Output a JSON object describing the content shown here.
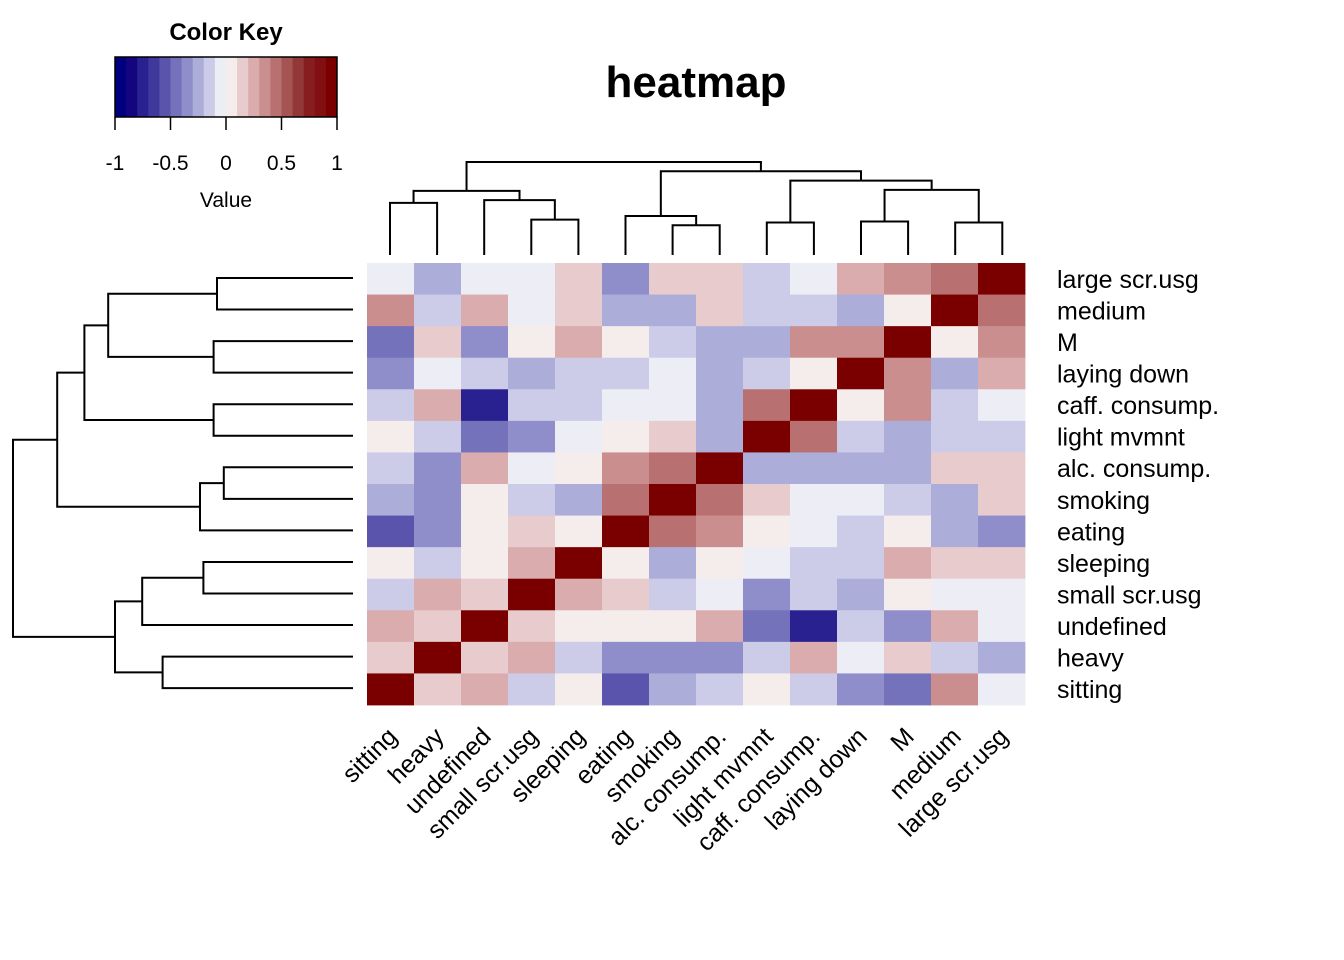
{
  "chart_data": {
    "type": "heatmap",
    "title": "heatmap",
    "color_key": {
      "title": "Color Key",
      "xlabel": "Value",
      "range": [
        -1,
        1
      ],
      "ticks": [
        "-1",
        "-0.5",
        "0",
        "0.5",
        "1"
      ],
      "tick_values": [
        -1,
        -0.5,
        0,
        0.5,
        1
      ],
      "bins": 20,
      "palette": [
        "#00007F",
        "#14047F",
        "#29218F",
        "#3F399C",
        "#5A54AC",
        "#7472BA",
        "#908ECA",
        "#ADADDA",
        "#CCCCE8",
        "#EDEDF5",
        "#F5ECEC",
        "#E8CBCD",
        "#DAACAD",
        "#CA8E8F",
        "#B87070",
        "#A55353",
        "#923838",
        "#871D1F",
        "#820F12",
        "#7A0000"
      ]
    },
    "columns": [
      "sitting",
      "heavy",
      "undefined",
      "small scr.usg",
      "sleeping",
      "eating",
      "smoking",
      "alc. consump.",
      "light mvmnt",
      "caff. consump.",
      "laying down",
      "M",
      "medium",
      "large scr.usg"
    ],
    "rows": [
      "large scr.usg",
      "medium",
      "M",
      "laying down",
      "caff. consump.",
      "light mvmnt",
      "alc. consump.",
      "smoking",
      "eating",
      "sleeping",
      "small scr.usg",
      "undefined",
      "heavy",
      "sitting"
    ],
    "values": [
      [
        -0.05,
        -0.25,
        -0.05,
        -0.05,
        0.15,
        -0.35,
        0.15,
        0.15,
        -0.15,
        -0.05,
        0.25,
        0.35,
        0.45,
        1
      ],
      [
        0.35,
        -0.15,
        0.25,
        -0.05,
        0.15,
        -0.25,
        -0.25,
        0.15,
        -0.15,
        -0.15,
        -0.25,
        0.05,
        1,
        0.45
      ],
      [
        -0.45,
        0.15,
        -0.35,
        0.05,
        0.25,
        0.05,
        -0.15,
        -0.25,
        -0.25,
        0.35,
        0.35,
        1,
        0.05,
        0.35
      ],
      [
        -0.35,
        -0.05,
        -0.15,
        -0.25,
        -0.15,
        -0.15,
        -0.05,
        -0.25,
        -0.15,
        0.05,
        1,
        0.35,
        -0.25,
        0.25
      ],
      [
        -0.15,
        0.25,
        -0.75,
        -0.15,
        -0.15,
        -0.05,
        -0.05,
        -0.25,
        0.45,
        1,
        0.05,
        0.35,
        -0.15,
        -0.05
      ],
      [
        0.05,
        -0.15,
        -0.45,
        -0.35,
        -0.05,
        0.05,
        0.15,
        -0.25,
        1,
        0.45,
        -0.15,
        -0.25,
        -0.15,
        -0.15
      ],
      [
        -0.15,
        -0.35,
        0.25,
        -0.05,
        0.05,
        0.35,
        0.45,
        1,
        -0.25,
        -0.25,
        -0.25,
        -0.25,
        0.15,
        0.15
      ],
      [
        -0.25,
        -0.35,
        0.05,
        -0.15,
        -0.25,
        0.45,
        1,
        0.45,
        0.15,
        -0.05,
        -0.05,
        -0.15,
        -0.25,
        0.15
      ],
      [
        -0.55,
        -0.35,
        0.05,
        0.15,
        0.05,
        1,
        0.45,
        0.35,
        0.05,
        -0.05,
        -0.15,
        0.05,
        -0.25,
        -0.35
      ],
      [
        0.05,
        -0.15,
        0.05,
        0.25,
        1,
        0.05,
        -0.25,
        0.05,
        -0.05,
        -0.15,
        -0.15,
        0.25,
        0.15,
        0.15
      ],
      [
        -0.15,
        0.25,
        0.15,
        1,
        0.25,
        0.15,
        -0.15,
        -0.05,
        -0.35,
        -0.15,
        -0.25,
        0.05,
        -0.05,
        -0.05
      ],
      [
        0.25,
        0.15,
        1,
        0.15,
        0.05,
        0.05,
        0.05,
        0.25,
        -0.45,
        -0.75,
        -0.15,
        -0.35,
        0.25,
        -0.05
      ],
      [
        0.15,
        1,
        0.15,
        0.25,
        -0.15,
        -0.35,
        -0.35,
        -0.35,
        -0.15,
        0.25,
        -0.05,
        0.15,
        -0.15,
        -0.25
      ],
      [
        1,
        0.15,
        0.25,
        -0.15,
        0.05,
        -0.55,
        -0.25,
        -0.15,
        0.05,
        -0.15,
        -0.35,
        -0.45,
        0.35,
        -0.05
      ]
    ],
    "column_dendrogram": {
      "merges": [
        {
          "left": "sitting",
          "right": "heavy",
          "height": 0.56
        },
        {
          "left": "small scr.usg",
          "right": "sleeping",
          "height": 0.38
        },
        {
          "left": "undefined",
          "right": "small scr.usg+sleeping",
          "height": 0.59
        },
        {
          "left": "sitting+heavy",
          "right": "undefined+small scr.usg+sleeping",
          "height": 0.69
        },
        {
          "left": "smoking",
          "right": "alc. consump.",
          "height": 0.32
        },
        {
          "left": "eating",
          "right": "smoking+alc. consump.",
          "height": 0.42
        },
        {
          "left": "light mvmnt",
          "right": "caff. consump.",
          "height": 0.35
        },
        {
          "left": "laying down",
          "right": "M",
          "height": 0.36
        },
        {
          "left": "medium",
          "right": "large scr.usg",
          "height": 0.35
        },
        {
          "left": "laying down+M",
          "right": "medium+large scr.usg",
          "height": 0.7
        },
        {
          "left": "light mvmnt+caff. consump.",
          "right": "laying down+M+medium+large scr.usg",
          "height": 0.8
        },
        {
          "left": "eating+smoking+alc. consump.",
          "right": "light mvmnt+...+large scr.usg",
          "height": 0.9
        },
        {
          "left": "left-cluster",
          "right": "right-cluster",
          "height": 1.0
        }
      ]
    },
    "row_dendrogram": {
      "merges": [
        {
          "left": "large scr.usg",
          "right": "medium",
          "height": 0.4
        },
        {
          "left": "M",
          "right": "laying down",
          "height": 0.41
        },
        {
          "left": "large scr.usg+medium",
          "right": "M+laying down",
          "height": 0.72
        },
        {
          "left": "caff. consump.",
          "right": "light mvmnt",
          "height": 0.41
        },
        {
          "left": "top4",
          "right": "caff. consump.+light mvmnt",
          "height": 0.79
        },
        {
          "left": "alc. consump.",
          "right": "smoking",
          "height": 0.38
        },
        {
          "left": "alc. consump.+smoking",
          "right": "eating",
          "height": 0.45
        },
        {
          "left": "top6",
          "right": "alc+smoking+eating",
          "height": 0.87
        },
        {
          "left": "sleeping",
          "right": "small scr.usg",
          "height": 0.44
        },
        {
          "left": "sleeping+small scr.usg",
          "right": "undefined",
          "height": 0.62
        },
        {
          "left": "heavy",
          "right": "sitting",
          "height": 0.56
        },
        {
          "left": "sleeping+small+undefined",
          "right": "heavy+sitting",
          "height": 0.7
        },
        {
          "left": "top9",
          "right": "bottom5",
          "height": 1.0
        }
      ]
    }
  }
}
